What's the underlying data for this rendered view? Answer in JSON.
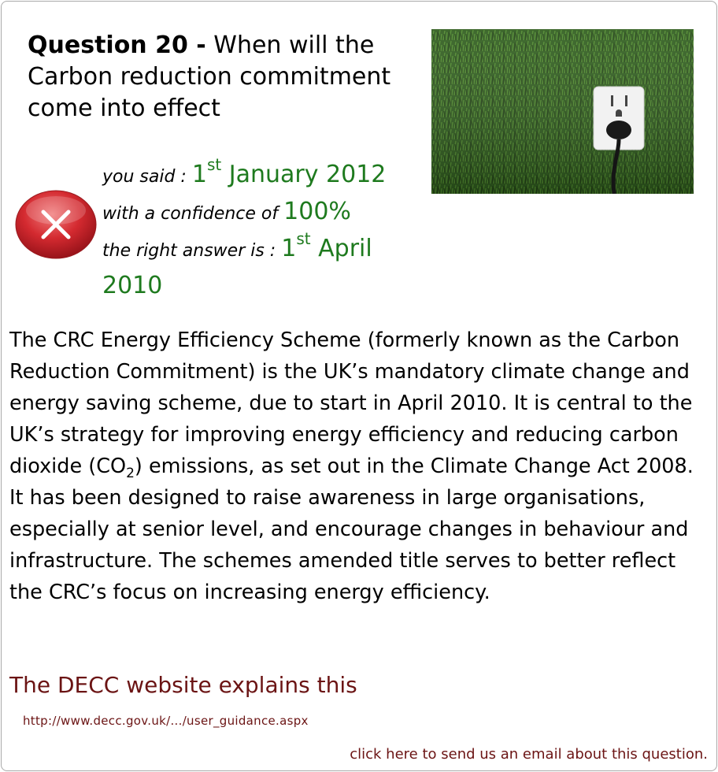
{
  "question": {
    "number_label": "Question 20 -",
    "text": "When will the Carbon reduction commitment come into effect"
  },
  "answer": {
    "you_said_label": "you said :",
    "you_said_day": "1",
    "you_said_sup": "st",
    "you_said_rest": "January 2012",
    "confidence_label": "with a confidence of",
    "confidence_value": "100%",
    "right_label": "the right answer is :",
    "right_day": "1",
    "right_sup": "st",
    "right_rest": "April 2010"
  },
  "result_icon": "wrong-cross-icon",
  "image": "plug-socket-in-grass",
  "explanation": {
    "part1": "The CRC Energy Efficiency Scheme (formerly known as the Carbon Reduction Commitment) is the UK’s mandatory climate change and energy saving scheme, due to start in April 2010. It is central to the UK’s strategy for improving energy efficiency and reducing carbon dioxide (CO",
    "sub": "2",
    "part2": ") emissions, as set out in the Climate Change Act 2008. It has been designed to raise awareness in large organisations, especially at senior level, and encourage changes in behaviour and infrastructure. The schemes amended title serves to better reflect the CRC’s focus on increasing energy efficiency."
  },
  "source": {
    "title": "The DECC website explains this",
    "link": "http://www.decc.gov.uk/.../user_guidance.aspx"
  },
  "email_link": "click here to send us an email about this question.",
  "colors": {
    "answer_green": "#1e7a1e",
    "link_maroon": "#6b1414",
    "icon_red": "#c8202a"
  }
}
